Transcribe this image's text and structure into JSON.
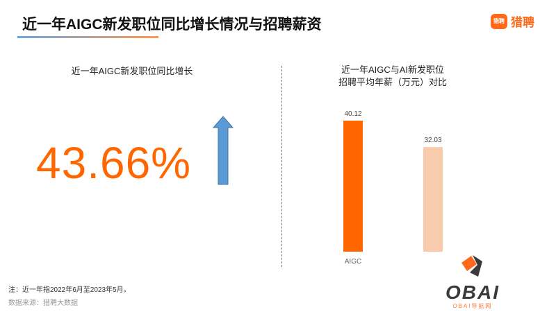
{
  "header": {
    "title": "近一年AIGC新发职位同比增长情况与招聘薪资",
    "logo_icon_text": "猎聘",
    "logo_text": "猎聘"
  },
  "left": {
    "subtitle": "近一年AIGC新发职位同比增长",
    "value": "43.66%",
    "arrow": "up-arrow-icon",
    "arrow_color": "#5b9bd5"
  },
  "chart_data": {
    "type": "bar",
    "title": "近一年AIGC与AI新发职位\n招聘平均年薪（万元）对比",
    "title_lines": [
      "近一年AIGC与AI新发职位",
      "招聘平均年薪（万元）对比"
    ],
    "categories": [
      "AIGC",
      ""
    ],
    "values": [
      40.12,
      32.03
    ],
    "value_labels": [
      "40.12",
      "32.03"
    ],
    "colors": [
      "#ff6600",
      "#f8cbad"
    ],
    "grid": false
  },
  "footer": {
    "note": "注：近一年指2022年6月至2023年5月。",
    "source": "数据来源：猎聘大数据"
  },
  "watermark": {
    "text": "OBAI",
    "subtext": "OBAI导航网"
  }
}
